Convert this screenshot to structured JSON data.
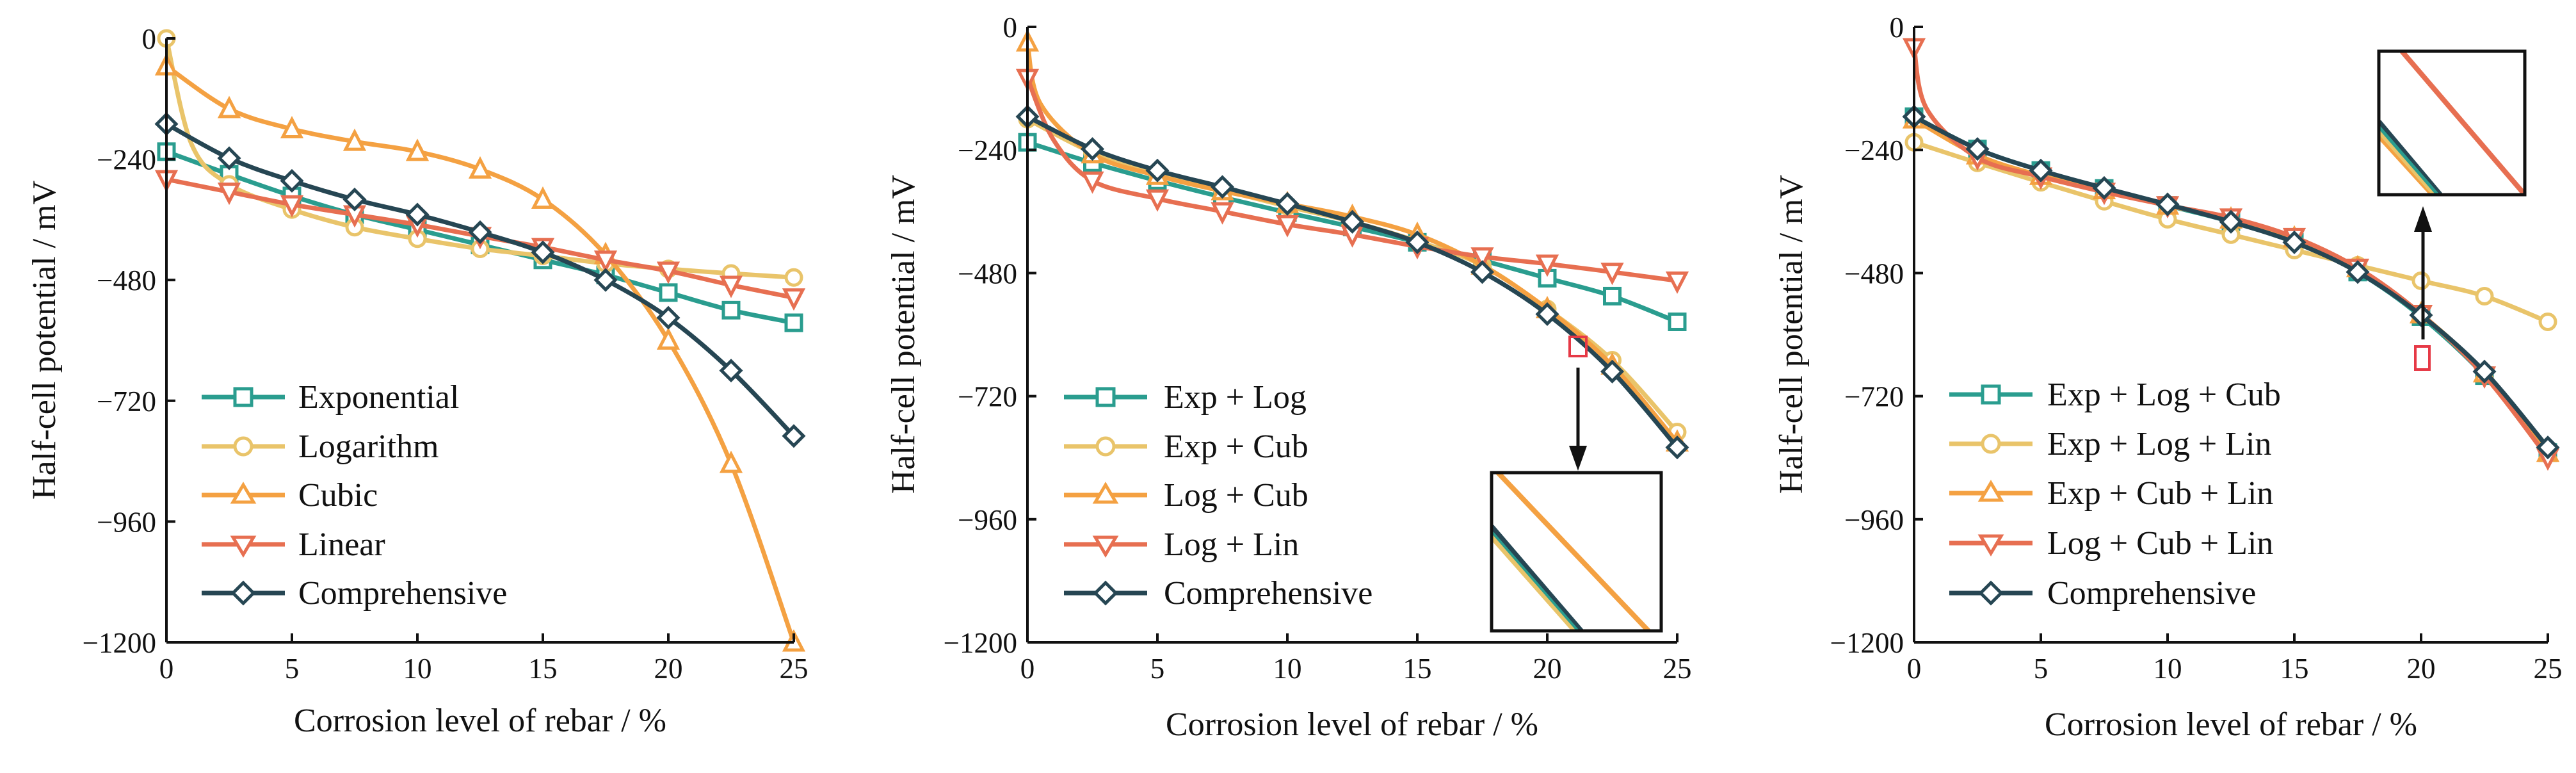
{
  "figure": {
    "marker_shapes": [
      "square",
      "circle",
      "triangle-up",
      "triangle-down",
      "diamond"
    ],
    "colors": {
      "teal": "#2a9d8f",
      "gold": "#e9c46a",
      "orange": "#f4a142",
      "red": "#e76f51",
      "navy": "#264653",
      "box": "#e63946",
      "axis": "#111111"
    }
  },
  "chart_data": [
    {
      "type": "line",
      "xlabel": "Corrosion level of rebar / %",
      "ylabel": "Half-cell potential / mV",
      "xlim": [
        0,
        25
      ],
      "ylim": [
        -1200,
        0
      ],
      "xticks": [
        0,
        5,
        10,
        15,
        20,
        25
      ],
      "yticks": [
        0,
        -240,
        -480,
        -720,
        -960,
        -1200
      ],
      "legend_position": "lower-left",
      "series": [
        {
          "name": "Exponential",
          "color": "#2a9d8f",
          "marker": "square",
          "x": [
            0,
            2.5,
            5,
            7.5,
            10,
            12.5,
            15,
            17.5,
            20,
            22.5,
            25
          ],
          "y": [
            -225,
            -270,
            -313,
            -350,
            -380,
            -410,
            -440,
            -470,
            -505,
            -540,
            -565
          ]
        },
        {
          "name": "Logarithm",
          "color": "#e9c46a",
          "marker": "circle",
          "x": [
            0,
            1,
            2.5,
            5,
            7.5,
            10,
            12.5,
            15,
            17.5,
            20,
            22.5,
            25
          ],
          "y": [
            0,
            -210,
            -290,
            -340,
            -375,
            -398,
            -418,
            -432,
            -447,
            -458,
            -467,
            -475
          ]
        },
        {
          "name": "Cubic",
          "color": "#f4a142",
          "marker": "triangle-up",
          "x": [
            0,
            2.5,
            5,
            7.5,
            10,
            12.5,
            15,
            17.5,
            20,
            22.5,
            25
          ],
          "y": [
            -55,
            -140,
            -180,
            -205,
            -225,
            -260,
            -320,
            -430,
            -600,
            -845,
            -1200
          ]
        },
        {
          "name": "Linear",
          "color": "#e76f51",
          "marker": "triangle-down",
          "x": [
            0,
            2.5,
            5,
            7.5,
            10,
            12.5,
            15,
            17.5,
            20,
            22.5,
            25
          ],
          "y": [
            -280,
            -305,
            -330,
            -350,
            -370,
            -393,
            -415,
            -440,
            -462,
            -490,
            -515
          ]
        },
        {
          "name": "Comprehensive",
          "color": "#264653",
          "marker": "diamond",
          "x": [
            0,
            2.5,
            5,
            7.5,
            10,
            12.5,
            15,
            17.5,
            20,
            22.5,
            25
          ],
          "y": [
            -170,
            -238,
            -283,
            -320,
            -350,
            -385,
            -425,
            -480,
            -555,
            -660,
            -790
          ]
        }
      ]
    },
    {
      "type": "line",
      "xlabel": "Corrosion level of rebar / %",
      "ylabel": "Half-cell potential / mV",
      "xlim": [
        0,
        25
      ],
      "ylim": [
        -1200,
        0
      ],
      "xticks": [
        0,
        5,
        10,
        15,
        20,
        25
      ],
      "yticks": [
        0,
        -240,
        -480,
        -720,
        -960,
        -1200
      ],
      "legend_position": "lower-left",
      "series": [
        {
          "name": "Exp + Log",
          "color": "#2a9d8f",
          "marker": "square",
          "x": [
            0,
            2.5,
            5,
            7.5,
            10,
            12.5,
            15,
            17.5,
            20,
            22.5,
            25
          ],
          "y": [
            -225,
            -265,
            -300,
            -332,
            -362,
            -390,
            -420,
            -455,
            -490,
            -525,
            -575
          ]
        },
        {
          "name": "Exp + Cub",
          "color": "#e9c46a",
          "marker": "circle",
          "x": [
            0,
            2.5,
            5,
            7.5,
            10,
            12.5,
            15,
            17.5,
            20,
            22.5,
            25
          ],
          "y": [
            -180,
            -245,
            -285,
            -318,
            -350,
            -380,
            -418,
            -465,
            -550,
            -650,
            -790
          ]
        },
        {
          "name": "Log + Cub",
          "color": "#f4a142",
          "marker": "triangle-up",
          "x": [
            0,
            0.5,
            2.5,
            5,
            7.5,
            10,
            12.5,
            15,
            17.5,
            20,
            22.5,
            25
          ],
          "y": [
            -30,
            -150,
            -248,
            -290,
            -320,
            -345,
            -370,
            -405,
            -465,
            -550,
            -660,
            -810
          ]
        },
        {
          "name": "Log + Lin",
          "color": "#e76f51",
          "marker": "triangle-down",
          "x": [
            0,
            1,
            2.5,
            5,
            7.5,
            10,
            12.5,
            15,
            17.5,
            20,
            22.5,
            25
          ],
          "y": [
            -100,
            -220,
            -300,
            -335,
            -360,
            -385,
            -405,
            -428,
            -448,
            -462,
            -478,
            -495
          ]
        },
        {
          "name": "Comprehensive",
          "color": "#264653",
          "marker": "diamond",
          "x": [
            0,
            2.5,
            5,
            7.5,
            10,
            12.5,
            15,
            17.5,
            20,
            22.5,
            25
          ],
          "y": [
            -175,
            -238,
            -280,
            -312,
            -345,
            -380,
            -420,
            -478,
            -560,
            -672,
            -820
          ]
        }
      ]
    },
    {
      "type": "line",
      "xlabel": "Corrosion level of rebar / %",
      "ylabel": "Half-cell potential / mV",
      "xlim": [
        0,
        25
      ],
      "ylim": [
        -1200,
        0
      ],
      "xticks": [
        0,
        5,
        10,
        15,
        20,
        25
      ],
      "yticks": [
        0,
        -240,
        -480,
        -720,
        -960,
        -1200
      ],
      "legend_position": "lower-left",
      "series": [
        {
          "name": "Exp + Log + Cub",
          "color": "#2a9d8f",
          "marker": "square",
          "x": [
            0,
            2.5,
            5,
            7.5,
            10,
            12.5,
            15,
            17.5,
            20,
            22.5,
            25
          ],
          "y": [
            -175,
            -238,
            -280,
            -315,
            -348,
            -380,
            -420,
            -478,
            -565,
            -680,
            -830
          ]
        },
        {
          "name": "Exp + Log + Lin",
          "color": "#e9c46a",
          "marker": "circle",
          "x": [
            0,
            2.5,
            5,
            7.5,
            10,
            12.5,
            15,
            17.5,
            20,
            22.5,
            25
          ],
          "y": [
            -225,
            -265,
            -303,
            -340,
            -375,
            -405,
            -435,
            -465,
            -495,
            -525,
            -575
          ]
        },
        {
          "name": "Exp + Cub + Lin",
          "color": "#f4a142",
          "marker": "triangle-up",
          "x": [
            0,
            2.5,
            5,
            7.5,
            10,
            12.5,
            15,
            17.5,
            20,
            22.5,
            25
          ],
          "y": [
            -180,
            -250,
            -290,
            -318,
            -348,
            -375,
            -412,
            -470,
            -560,
            -675,
            -830
          ]
        },
        {
          "name": "Log + Cub + Lin",
          "color": "#e76f51",
          "marker": "triangle-down",
          "x": [
            0,
            0.5,
            2.5,
            5,
            7.5,
            10,
            12.5,
            15,
            17.5,
            20,
            22.5,
            25
          ],
          "y": [
            -40,
            -160,
            -255,
            -292,
            -322,
            -348,
            -372,
            -410,
            -470,
            -560,
            -680,
            -840
          ]
        },
        {
          "name": "Comprehensive",
          "color": "#264653",
          "marker": "diamond",
          "x": [
            0,
            2.5,
            5,
            7.5,
            10,
            12.5,
            15,
            17.5,
            20,
            22.5,
            25
          ],
          "y": [
            -175,
            -238,
            -280,
            -314,
            -346,
            -380,
            -420,
            -478,
            -562,
            -672,
            -820
          ]
        }
      ]
    }
  ]
}
